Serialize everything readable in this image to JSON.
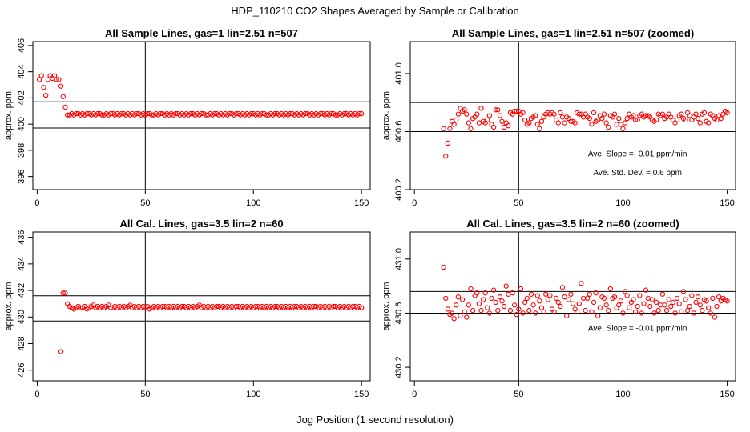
{
  "figure": {
    "title": "HDP_110210  CO2 Shapes Averaged by Sample or Calibration",
    "xlabel": "Jog Position (1 second resolution)"
  },
  "chart_data": [
    {
      "type": "scatter",
      "title": "All Sample Lines, gas=1 lin=2.51 n=507",
      "ylabel": "approx. ppm",
      "xlim": [
        -2,
        154
      ],
      "ylim": [
        395,
        406.3
      ],
      "xticks": [
        0,
        50,
        100,
        150
      ],
      "yticks": [
        396,
        398,
        400,
        402,
        404,
        406
      ],
      "hlines": [
        401.7,
        399.7
      ],
      "vlines": [
        50
      ],
      "color": "#ff0000",
      "annotations": [],
      "x": [
        1,
        2,
        3,
        4,
        5,
        6,
        7,
        8,
        9,
        10,
        11,
        12,
        13,
        14,
        15,
        16,
        17,
        18,
        19,
        20,
        21,
        22,
        23,
        24,
        25,
        26,
        27,
        28,
        29,
        30,
        31,
        32,
        33,
        34,
        35,
        36,
        37,
        38,
        39,
        40,
        41,
        42,
        43,
        44,
        45,
        46,
        47,
        48,
        49,
        50,
        51,
        52,
        53,
        54,
        55,
        56,
        57,
        58,
        59,
        60,
        61,
        62,
        63,
        64,
        65,
        66,
        67,
        68,
        69,
        70,
        71,
        72,
        73,
        74,
        75,
        76,
        77,
        78,
        79,
        80,
        81,
        82,
        83,
        84,
        85,
        86,
        87,
        88,
        89,
        90,
        91,
        92,
        93,
        94,
        95,
        96,
        97,
        98,
        99,
        100,
        101,
        102,
        103,
        104,
        105,
        106,
        107,
        108,
        109,
        110,
        111,
        112,
        113,
        114,
        115,
        116,
        117,
        118,
        119,
        120,
        121,
        122,
        123,
        124,
        125,
        126,
        127,
        128,
        129,
        130,
        131,
        132,
        133,
        134,
        135,
        136,
        137,
        138,
        139,
        140,
        141,
        142,
        143,
        144,
        145,
        146,
        147,
        148,
        149,
        150
      ],
      "y": [
        403.4,
        403.7,
        402.8,
        402.2,
        403.4,
        403.7,
        403.5,
        403.7,
        403.4,
        403.4,
        402.9,
        402.1,
        401.3,
        400.7,
        400.7,
        400.8,
        400.7,
        400.8,
        400.8,
        400.7,
        400.8,
        400.7,
        400.8,
        400.8,
        400.7,
        400.8,
        400.7,
        400.8,
        400.8,
        400.7,
        400.7,
        400.8,
        400.7,
        400.8,
        400.8,
        400.7,
        400.8,
        400.7,
        400.8,
        400.8,
        400.7,
        400.8,
        400.7,
        400.8,
        400.7,
        400.8,
        400.8,
        400.7,
        400.8,
        400.7,
        400.8,
        400.8,
        400.7,
        400.7,
        400.8,
        400.7,
        400.8,
        400.8,
        400.7,
        400.8,
        400.7,
        400.8,
        400.7,
        400.8,
        400.8,
        400.7,
        400.8,
        400.7,
        400.8,
        400.7,
        400.8,
        400.8,
        400.7,
        400.8,
        400.7,
        400.8,
        400.8,
        400.7,
        400.7,
        400.8,
        400.7,
        400.8,
        400.8,
        400.7,
        400.8,
        400.7,
        400.8,
        400.7,
        400.8,
        400.8,
        400.7,
        400.8,
        400.8,
        400.7,
        400.8,
        400.7,
        400.8,
        400.7,
        400.8,
        400.8,
        400.7,
        400.8,
        400.7,
        400.8,
        400.8,
        400.7,
        400.7,
        400.8,
        400.7,
        400.8,
        400.8,
        400.7,
        400.8,
        400.7,
        400.8,
        400.7,
        400.8,
        400.8,
        400.7,
        400.8,
        400.7,
        400.8,
        400.7,
        400.8,
        400.8,
        400.7,
        400.8,
        400.7,
        400.8,
        400.7,
        400.8,
        400.8,
        400.7,
        400.8,
        400.7,
        400.8,
        400.8,
        400.7,
        400.7,
        400.8,
        400.7,
        400.8,
        400.8,
        400.7,
        400.8,
        400.7,
        400.8,
        400.7,
        400.8,
        400.8
      ]
    },
    {
      "type": "scatter",
      "title": "All Sample Lines, gas=1 lin=2.51 n=507 (zoomed)",
      "ylabel": "approx. ppm",
      "xlim": [
        -2,
        154
      ],
      "ylim": [
        400.2,
        401.22
      ],
      "xticks": [
        0,
        50,
        100,
        150
      ],
      "yticks": [
        400.2,
        400.6,
        401.0
      ],
      "hlines": [
        400.8,
        400.6
      ],
      "vlines": [
        50
      ],
      "color": "#ff0000",
      "annotations": [
        {
          "text": "Ave. Slope =  -0.01  ppm/min",
          "x": 107,
          "y": 400.43
        },
        {
          "text": "Ave. Std. Dev. =  0.6  ppm",
          "x": 107,
          "y": 400.3
        }
      ],
      "x": [
        14,
        15,
        16,
        17,
        18,
        19,
        20,
        21,
        22,
        23,
        24,
        25,
        26,
        27,
        28,
        29,
        30,
        31,
        32,
        33,
        34,
        35,
        36,
        37,
        38,
        39,
        40,
        41,
        42,
        43,
        44,
        45,
        46,
        47,
        48,
        49,
        50,
        51,
        52,
        53,
        54,
        55,
        56,
        57,
        58,
        59,
        60,
        61,
        62,
        63,
        64,
        65,
        66,
        67,
        68,
        69,
        70,
        71,
        72,
        73,
        74,
        75,
        76,
        77,
        78,
        79,
        80,
        81,
        82,
        83,
        84,
        85,
        86,
        87,
        88,
        89,
        90,
        91,
        92,
        93,
        94,
        95,
        96,
        97,
        98,
        99,
        100,
        101,
        102,
        103,
        104,
        105,
        106,
        107,
        108,
        109,
        110,
        111,
        112,
        113,
        114,
        115,
        116,
        117,
        118,
        119,
        120,
        121,
        122,
        123,
        124,
        125,
        126,
        127,
        128,
        129,
        130,
        131,
        132,
        133,
        134,
        135,
        136,
        137,
        138,
        139,
        140,
        141,
        142,
        143,
        144,
        145,
        146,
        147,
        148,
        149,
        150
      ],
      "y": [
        400.62,
        400.43,
        400.52,
        400.62,
        400.67,
        400.65,
        400.68,
        400.72,
        400.76,
        400.74,
        400.75,
        400.72,
        400.66,
        400.62,
        400.69,
        400.7,
        400.72,
        400.66,
        400.76,
        400.67,
        400.66,
        400.68,
        400.71,
        400.65,
        400.63,
        400.75,
        400.75,
        400.71,
        400.67,
        400.63,
        400.66,
        400.64,
        400.73,
        400.72,
        400.74,
        400.74,
        400.74,
        400.72,
        400.73,
        400.68,
        400.65,
        400.66,
        400.69,
        400.7,
        400.71,
        400.65,
        400.62,
        400.67,
        400.7,
        400.72,
        400.73,
        400.72,
        400.73,
        400.72,
        400.68,
        400.66,
        400.73,
        400.7,
        400.66,
        400.7,
        400.69,
        400.67,
        400.67,
        400.66,
        400.73,
        400.72,
        400.72,
        400.7,
        400.72,
        400.7,
        400.69,
        400.65,
        400.73,
        400.67,
        400.68,
        400.71,
        400.69,
        400.72,
        400.66,
        400.63,
        400.71,
        400.7,
        400.72,
        400.65,
        400.69,
        400.65,
        400.62,
        400.66,
        400.69,
        400.72,
        400.7,
        400.71,
        400.68,
        400.68,
        400.71,
        400.72,
        400.7,
        400.71,
        400.71,
        400.7,
        400.68,
        400.67,
        400.68,
        400.72,
        400.71,
        400.72,
        400.69,
        400.7,
        400.72,
        400.7,
        400.68,
        400.66,
        400.68,
        400.71,
        400.72,
        400.69,
        400.68,
        400.73,
        400.71,
        400.68,
        400.7,
        400.72,
        400.69,
        400.66,
        400.72,
        400.73,
        400.67,
        400.66,
        400.72,
        400.71,
        400.69,
        400.68,
        400.71,
        400.69,
        400.72,
        400.74,
        400.73
      ]
    },
    {
      "type": "scatter",
      "title": "All Cal. Lines, gas=3.5 lin=2 n=60",
      "ylabel": "approx. ppm",
      "xlim": [
        -2,
        154
      ],
      "ylim": [
        425.2,
        436.4
      ],
      "xticks": [
        0,
        50,
        100,
        150
      ],
      "yticks": [
        426,
        428,
        430,
        432,
        434,
        436
      ],
      "hlines": [
        431.6,
        429.7
      ],
      "vlines": [
        50
      ],
      "color": "#ff0000",
      "annotations": [],
      "x": [
        11,
        12,
        13,
        14,
        15,
        16,
        17,
        18,
        19,
        20,
        21,
        22,
        23,
        24,
        25,
        26,
        27,
        28,
        29,
        30,
        31,
        32,
        33,
        34,
        35,
        36,
        37,
        38,
        39,
        40,
        41,
        42,
        43,
        44,
        45,
        46,
        47,
        48,
        49,
        50,
        51,
        52,
        53,
        54,
        55,
        56,
        57,
        58,
        59,
        60,
        61,
        62,
        63,
        64,
        65,
        66,
        67,
        68,
        69,
        70,
        71,
        72,
        73,
        74,
        75,
        76,
        77,
        78,
        79,
        80,
        81,
        82,
        83,
        84,
        85,
        86,
        87,
        88,
        89,
        90,
        91,
        92,
        93,
        94,
        95,
        96,
        97,
        98,
        99,
        100,
        101,
        102,
        103,
        104,
        105,
        106,
        107,
        108,
        109,
        110,
        111,
        112,
        113,
        114,
        115,
        116,
        117,
        118,
        119,
        120,
        121,
        122,
        123,
        124,
        125,
        126,
        127,
        128,
        129,
        130,
        131,
        132,
        133,
        134,
        135,
        136,
        137,
        138,
        139,
        140,
        141,
        142,
        143,
        144,
        145,
        146,
        147,
        148,
        149,
        150
      ],
      "y": [
        427.4,
        431.8,
        431.8,
        431.0,
        430.8,
        430.7,
        430.6,
        430.7,
        430.8,
        430.7,
        430.7,
        430.8,
        430.6,
        430.7,
        430.8,
        430.9,
        430.7,
        430.8,
        430.7,
        430.8,
        430.7,
        430.8,
        430.9,
        430.7,
        430.7,
        430.8,
        430.7,
        430.8,
        430.7,
        430.8,
        430.7,
        430.8,
        430.9,
        430.7,
        430.8,
        430.7,
        430.8,
        430.7,
        430.8,
        430.7,
        430.8,
        430.6,
        430.7,
        430.8,
        430.7,
        430.8,
        430.7,
        430.8,
        430.8,
        430.7,
        430.8,
        430.7,
        430.8,
        430.7,
        430.8,
        430.7,
        430.8,
        430.8,
        430.7,
        430.8,
        430.7,
        430.8,
        430.7,
        430.8,
        430.9,
        430.7,
        430.8,
        430.7,
        430.8,
        430.7,
        430.8,
        430.7,
        430.8,
        430.8,
        430.7,
        430.8,
        430.7,
        430.8,
        430.7,
        430.8,
        430.7,
        430.8,
        430.8,
        430.7,
        430.8,
        430.7,
        430.8,
        430.7,
        430.8,
        430.7,
        430.8,
        430.8,
        430.7,
        430.8,
        430.7,
        430.8,
        430.7,
        430.8,
        430.7,
        430.8,
        430.8,
        430.7,
        430.8,
        430.7,
        430.8,
        430.7,
        430.8,
        430.7,
        430.8,
        430.8,
        430.7,
        430.8,
        430.7,
        430.8,
        430.7,
        430.8,
        430.7,
        430.8,
        430.8,
        430.7,
        430.8,
        430.7,
        430.8,
        430.7,
        430.8,
        430.7,
        430.8,
        430.8,
        430.7,
        430.8,
        430.7,
        430.8,
        430.7,
        430.8,
        430.7,
        430.8,
        430.8,
        430.7,
        430.8,
        430.7
      ]
    },
    {
      "type": "scatter",
      "title": "All Cal. Lines, gas=3.5 lin=2 n=60 (zoomed)",
      "ylabel": "approx. ppm",
      "xlim": [
        -2,
        154
      ],
      "ylim": [
        430.1,
        431.2
      ],
      "xticks": [
        0,
        50,
        100,
        150
      ],
      "yticks": [
        430.2,
        430.6,
        431.0
      ],
      "hlines": [
        430.76,
        430.6
      ],
      "vlines": [
        50
      ],
      "color": "#ff0000",
      "annotations": [
        {
          "text": "Ave. Slope =  -0.01  ppm/min",
          "x": 107,
          "y": 430.47
        }
      ],
      "x": [
        14,
        15,
        16,
        17,
        18,
        19,
        20,
        21,
        22,
        23,
        24,
        25,
        26,
        27,
        28,
        29,
        30,
        31,
        32,
        33,
        34,
        35,
        36,
        37,
        38,
        39,
        40,
        41,
        42,
        43,
        44,
        45,
        46,
        47,
        48,
        49,
        50,
        51,
        52,
        53,
        54,
        55,
        56,
        57,
        58,
        59,
        60,
        61,
        62,
        63,
        64,
        65,
        66,
        67,
        68,
        69,
        70,
        71,
        72,
        73,
        74,
        75,
        76,
        77,
        78,
        79,
        80,
        81,
        82,
        83,
        84,
        85,
        86,
        87,
        88,
        89,
        90,
        91,
        92,
        93,
        94,
        95,
        96,
        97,
        98,
        99,
        100,
        101,
        102,
        103,
        104,
        105,
        106,
        107,
        108,
        109,
        110,
        111,
        112,
        113,
        114,
        115,
        116,
        117,
        118,
        119,
        120,
        121,
        122,
        123,
        124,
        125,
        126,
        127,
        128,
        129,
        130,
        131,
        132,
        133,
        134,
        135,
        136,
        137,
        138,
        139,
        140,
        141,
        142,
        143,
        144,
        145,
        146,
        147,
        148,
        149,
        150
      ],
      "y": [
        430.94,
        430.71,
        430.63,
        430.59,
        430.6,
        430.56,
        430.66,
        430.72,
        430.58,
        430.7,
        430.61,
        430.57,
        430.66,
        430.78,
        430.62,
        430.73,
        430.75,
        430.67,
        430.62,
        430.7,
        430.75,
        430.64,
        430.6,
        430.71,
        430.77,
        430.68,
        430.62,
        430.72,
        430.69,
        430.65,
        430.8,
        430.74,
        430.62,
        430.75,
        430.66,
        430.59,
        430.63,
        430.78,
        430.6,
        430.68,
        430.71,
        430.62,
        430.74,
        430.66,
        430.6,
        430.73,
        430.69,
        430.64,
        430.61,
        430.74,
        430.7,
        430.73,
        430.63,
        430.61,
        430.71,
        430.68,
        430.65,
        430.79,
        430.72,
        430.58,
        430.7,
        430.74,
        430.67,
        430.63,
        430.61,
        430.67,
        430.82,
        430.71,
        430.62,
        430.71,
        430.74,
        430.61,
        430.68,
        430.75,
        430.58,
        430.64,
        430.72,
        430.71,
        430.66,
        430.62,
        430.78,
        430.71,
        430.72,
        430.64,
        430.66,
        430.69,
        430.6,
        430.76,
        430.73,
        430.64,
        430.68,
        430.7,
        430.61,
        430.65,
        430.73,
        430.6,
        430.67,
        430.77,
        430.71,
        430.65,
        430.7,
        430.6,
        430.68,
        430.62,
        430.66,
        430.74,
        430.66,
        430.62,
        430.7,
        430.65,
        430.68,
        430.6,
        430.71,
        430.67,
        430.61,
        430.76,
        430.7,
        430.62,
        430.65,
        430.73,
        430.6,
        430.68,
        430.72,
        430.66,
        430.62,
        430.7,
        430.69,
        430.64,
        430.6,
        430.71,
        430.57,
        430.65,
        430.72,
        430.69,
        430.71,
        430.7,
        430.69
      ]
    }
  ]
}
